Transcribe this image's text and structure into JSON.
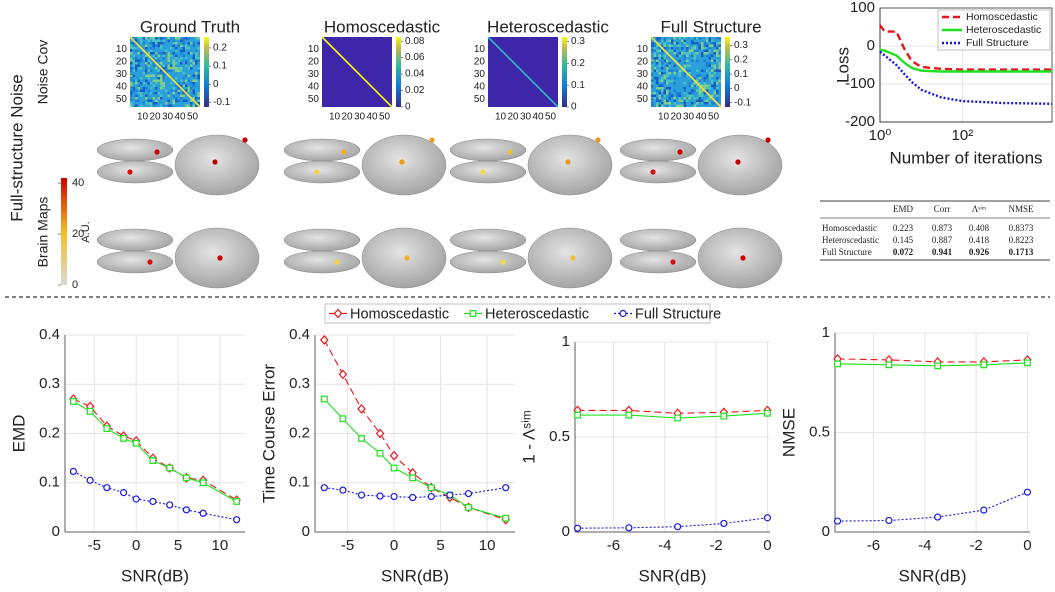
{
  "figure": {
    "row_title": "Full-structure Noise",
    "row_labels": [
      "Noise Cov",
      "Brain Maps"
    ],
    "methods": [
      "Ground Truth",
      "Homoscedastic",
      "Heteroscedastic",
      "Full Structure"
    ],
    "heatmap_lim": [
      0,
      56
    ],
    "heatmap_ticks": [
      10,
      20,
      30,
      40,
      50
    ],
    "colorbars": [
      {
        "lim": [
          -0.125,
          0.26
        ],
        "ticks": [
          0.2,
          0.1,
          0,
          -0.1
        ]
      },
      {
        "lim": [
          0,
          0.085
        ],
        "ticks": [
          0.08,
          0.06,
          0.04,
          0.02,
          0
        ]
      },
      {
        "lim": [
          0,
          0.32
        ],
        "ticks": [
          0.3,
          0.2,
          0.1,
          0
        ]
      },
      {
        "lim": [
          -0.13,
          0.36
        ],
        "ticks": [
          0.3,
          0.2,
          0.1,
          0,
          -0.1
        ]
      }
    ],
    "brain_colorbar": {
      "label": "A.U.",
      "lim": [
        0,
        42
      ],
      "ticks": [
        40,
        20,
        0
      ]
    }
  },
  "table": {
    "header": [
      "EMD",
      "Corr",
      "Λˢⁱᵐ",
      "NMSE"
    ],
    "rows": [
      [
        "Homoscedastic",
        0.223,
        0.873,
        0.408,
        0.8373
      ],
      [
        "Heteroscedastic",
        0.145,
        0.887,
        0.418,
        0.8223
      ],
      [
        "Full Structure",
        0.072,
        0.941,
        0.926,
        0.1713
      ]
    ],
    "bold_row": 2
  },
  "chart_data": [
    {
      "type": "line",
      "xlabel": "Number of iterations",
      "ylabel": "Loss",
      "xscale": "log",
      "x": [
        1,
        1.3,
        2.5,
        4,
        6,
        10,
        30,
        100,
        1000,
        15000
      ],
      "xlim": [
        1,
        15000
      ],
      "xticks": [
        {
          "value": 1,
          "label": "10⁰"
        },
        {
          "value": 100,
          "label": "10²"
        }
      ],
      "ylim": [
        -200,
        100
      ],
      "yticks": [
        -200,
        -100,
        0,
        100
      ],
      "grid": true,
      "legend": "upper right",
      "series": [
        {
          "name": "Homoscedastic",
          "color": "#e8141b",
          "line_style": "dashed",
          "values": [
            55,
            38,
            38,
            -10,
            -40,
            -55,
            -60,
            -62,
            -62,
            -62
          ]
        },
        {
          "name": "Heteroscedastic",
          "color": "#1ee01e",
          "line_style": "solid",
          "values": [
            -10,
            -12,
            -25,
            -45,
            -58,
            -65,
            -67,
            -67,
            -67,
            -67
          ]
        },
        {
          "name": "Full Structure",
          "color": "#1616e0",
          "line_style": "dotted",
          "values": [
            -15,
            -25,
            -50,
            -75,
            -95,
            -115,
            -135,
            -145,
            -150,
            -152
          ]
        }
      ]
    },
    {
      "type": "line",
      "xlabel": "SNR(dB)",
      "ylabel": "EMD",
      "x": [
        -7.5,
        -5.5,
        -3.5,
        -1.5,
        0,
        2,
        4,
        6,
        8,
        12
      ],
      "xlim": [
        -8.5,
        13
      ],
      "xticks": [
        -5,
        0,
        5,
        10
      ],
      "ylim": [
        0,
        0.4
      ],
      "yticks": [
        0,
        0.1,
        0.2,
        0.3,
        0.4
      ],
      "grid": true,
      "legend": "above",
      "series": [
        {
          "name": "Homoscedastic",
          "color": "#e8141b",
          "line_style": "dashed",
          "marker": "diamond",
          "values": [
            0.27,
            0.255,
            0.215,
            0.195,
            0.185,
            0.15,
            0.13,
            0.11,
            0.105,
            0.065
          ]
        },
        {
          "name": "Heteroscedastic",
          "color": "#1ee01e",
          "line_style": "solid",
          "marker": "square",
          "values": [
            0.265,
            0.245,
            0.21,
            0.19,
            0.18,
            0.145,
            0.13,
            0.11,
            0.1,
            0.062
          ]
        },
        {
          "name": "Full Structure",
          "color": "#1616e0",
          "line_style": "dotted",
          "marker": "circle",
          "values": [
            0.123,
            0.105,
            0.09,
            0.08,
            0.067,
            0.062,
            0.055,
            0.045,
            0.038,
            0.025
          ]
        }
      ]
    },
    {
      "type": "line",
      "xlabel": "SNR(dB)",
      "ylabel": "Time Course Error",
      "x": [
        -7.5,
        -5.5,
        -3.5,
        -1.5,
        0,
        2,
        4,
        6,
        8,
        12
      ],
      "xlim": [
        -8.5,
        13
      ],
      "xticks": [
        -5,
        0,
        5,
        10
      ],
      "ylim": [
        0,
        0.4
      ],
      "yticks": [
        0,
        0.1,
        0.2,
        0.3,
        0.4
      ],
      "grid": true,
      "series": [
        {
          "color": "#e8141b",
          "line_style": "dashed",
          "marker": "diamond",
          "values": [
            0.39,
            0.32,
            0.25,
            0.2,
            0.155,
            0.12,
            0.09,
            0.07,
            0.05,
            0.025
          ]
        },
        {
          "color": "#1ee01e",
          "line_style": "solid",
          "marker": "square",
          "values": [
            0.27,
            0.23,
            0.19,
            0.16,
            0.13,
            0.11,
            0.09,
            0.075,
            0.05,
            0.028
          ]
        },
        {
          "color": "#1616e0",
          "line_style": "dotted",
          "marker": "circle",
          "values": [
            0.09,
            0.085,
            0.075,
            0.073,
            0.072,
            0.07,
            0.072,
            0.075,
            0.078,
            0.09
          ]
        }
      ]
    },
    {
      "type": "line",
      "xlabel": "SNR(dB)",
      "ylabel": "1 - Λˢⁱᵐ",
      "x": [
        -7.4,
        -5.4,
        -3.5,
        -1.7,
        0
      ],
      "xlim": [
        -7.5,
        0.1
      ],
      "xticks": [
        -6,
        -4,
        -2,
        0
      ],
      "ylim": [
        0,
        1
      ],
      "yticks": [
        0,
        0.5,
        1
      ],
      "grid": true,
      "series": [
        {
          "color": "#e8141b",
          "line_style": "dashed",
          "marker": "diamond",
          "values": [
            0.64,
            0.64,
            0.625,
            0.63,
            0.64
          ]
        },
        {
          "color": "#1ee01e",
          "line_style": "solid",
          "marker": "square",
          "values": [
            0.615,
            0.615,
            0.6,
            0.61,
            0.625
          ]
        },
        {
          "color": "#1616e0",
          "line_style": "dotted",
          "marker": "circle",
          "values": [
            0.02,
            0.022,
            0.028,
            0.045,
            0.075
          ]
        }
      ]
    },
    {
      "type": "line",
      "xlabel": "SNR(dB)",
      "ylabel": "NMSE",
      "x": [
        -7.4,
        -5.4,
        -3.5,
        -1.7,
        0
      ],
      "xlim": [
        -7.5,
        0.1
      ],
      "xticks": [
        -6,
        -4,
        -2,
        0
      ],
      "ylim": [
        0,
        1
      ],
      "yticks": [
        0,
        0.5,
        1
      ],
      "grid": true,
      "series": [
        {
          "color": "#e8141b",
          "line_style": "dashed",
          "marker": "diamond",
          "values": [
            0.87,
            0.865,
            0.855,
            0.855,
            0.865
          ]
        },
        {
          "color": "#1ee01e",
          "line_style": "solid",
          "marker": "square",
          "values": [
            0.845,
            0.84,
            0.835,
            0.84,
            0.85
          ]
        },
        {
          "color": "#1616e0",
          "line_style": "dotted",
          "marker": "circle",
          "values": [
            0.055,
            0.058,
            0.075,
            0.11,
            0.2
          ]
        }
      ]
    }
  ]
}
